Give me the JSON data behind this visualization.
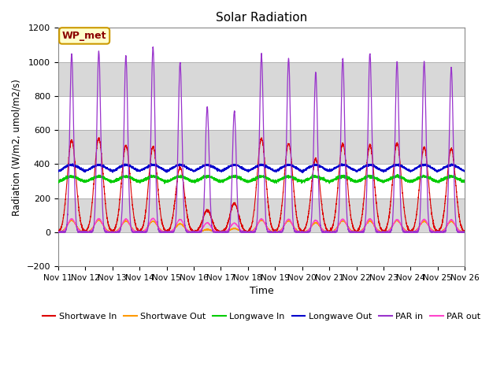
{
  "title": "Solar Radiation",
  "xlabel": "Time",
  "ylabel": "Radiation (W/m2, umol/m2/s)",
  "ylim": [
    -200,
    1200
  ],
  "yticks": [
    -200,
    0,
    200,
    400,
    600,
    800,
    1000,
    1200
  ],
  "xtick_labels": [
    "Nov 11",
    "Nov 12",
    "Nov 13",
    "Nov 14",
    "Nov 15",
    "Nov 16",
    "Nov 17",
    "Nov 18",
    "Nov 19",
    "Nov 20",
    "Nov 21",
    "Nov 22",
    "Nov 23",
    "Nov 24",
    "Nov 25",
    "Nov 26"
  ],
  "plot_bg_color": "#ffffff",
  "legend_label": "WP_met",
  "series_colors": {
    "sw_in": "#dd0000",
    "sw_out": "#ff9900",
    "lw_in": "#00cc00",
    "lw_out": "#0000cc",
    "par_in": "#9933cc",
    "par_out": "#ff44cc"
  },
  "num_days": 15,
  "points_per_day": 288
}
